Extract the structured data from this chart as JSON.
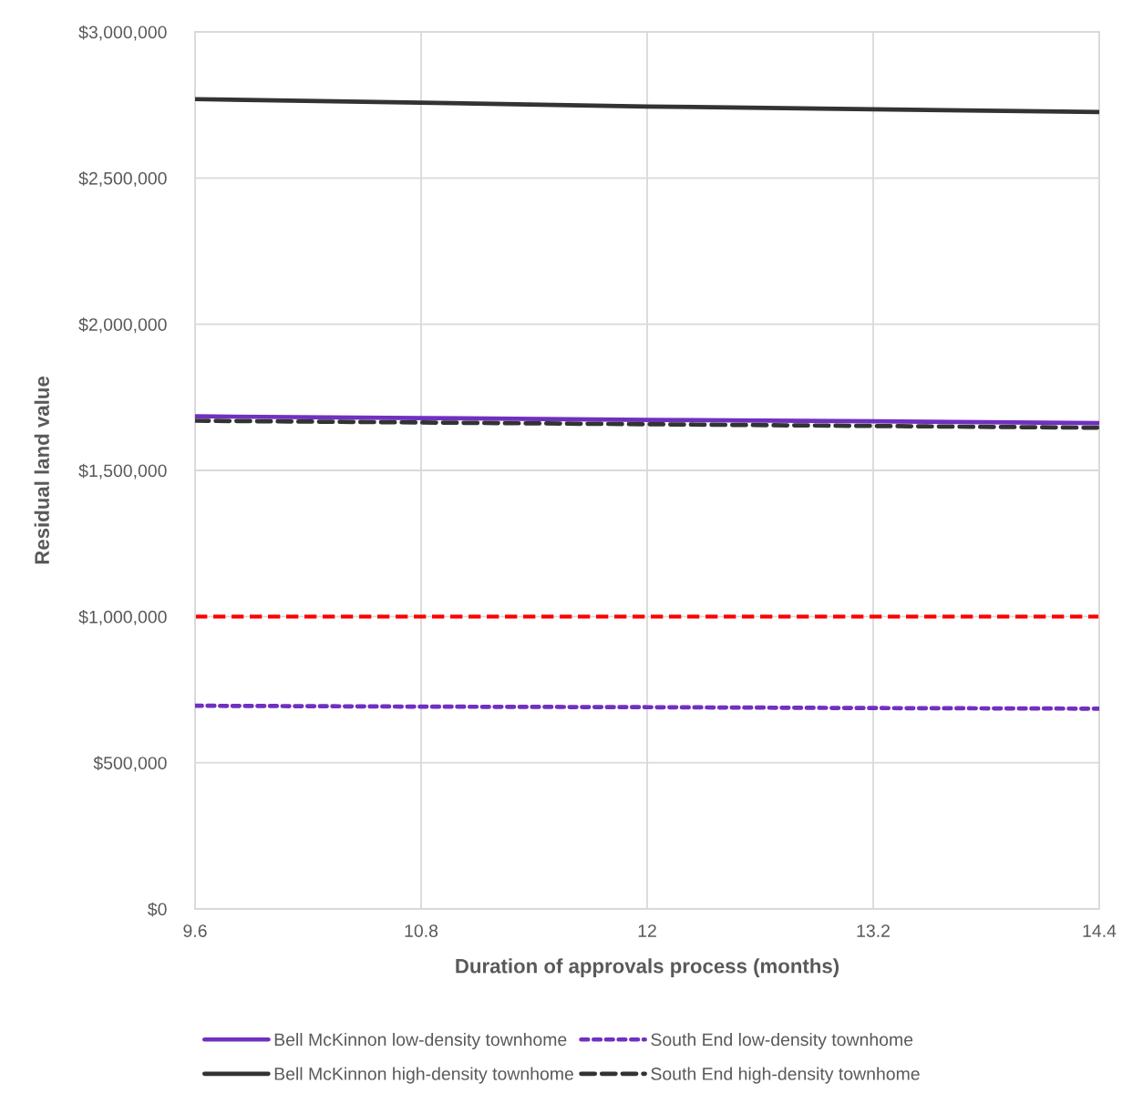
{
  "chart_data": {
    "type": "line",
    "xlabel": "Duration of approvals process (months)",
    "ylabel": "Residual land value",
    "x": [
      9.6,
      10.8,
      12,
      13.2,
      14.4
    ],
    "series": [
      {
        "name": "Bell McKinnon low-density townhome",
        "color": "#7030c0",
        "line_style": "solid",
        "values": [
          1685000,
          1679000,
          1673000,
          1668000,
          1662000
        ]
      },
      {
        "name": "Bell McKinnon high-density townhome",
        "color": "#333333",
        "line_style": "solid",
        "values": [
          2770000,
          2758000,
          2745000,
          2735000,
          2726000
        ]
      },
      {
        "name": "South End low-density townhome",
        "color": "#7030c0",
        "line_style": "dotted",
        "values": [
          695000,
          692000,
          690000,
          687000,
          685000
        ]
      },
      {
        "name": "South End high-density townhome",
        "color": "#333333",
        "line_style": "dashed",
        "values": [
          1670000,
          1664000,
          1658000,
          1652000,
          1646000
        ]
      }
    ],
    "ref_lines": [
      {
        "axis": "y",
        "value": 1000000,
        "color": "#ff0000",
        "line_style": "dashed"
      }
    ],
    "xlim": [
      9.6,
      14.4
    ],
    "xticks": [
      9.6,
      10.8,
      12,
      13.2,
      14.4
    ],
    "ylim": [
      0,
      3000000
    ],
    "yticks": [
      {
        "value": 0,
        "label": "$0"
      },
      {
        "value": 500000,
        "label": "$500,000"
      },
      {
        "value": 1000000,
        "label": "$1,000,000"
      },
      {
        "value": 1500000,
        "label": "$1,500,000"
      },
      {
        "value": 2000000,
        "label": "$2,000,000"
      },
      {
        "value": 2500000,
        "label": "$2,500,000"
      },
      {
        "value": 3000000,
        "label": "$3,000,000"
      }
    ],
    "grid": true,
    "legend": "bottom",
    "marker": "none"
  }
}
